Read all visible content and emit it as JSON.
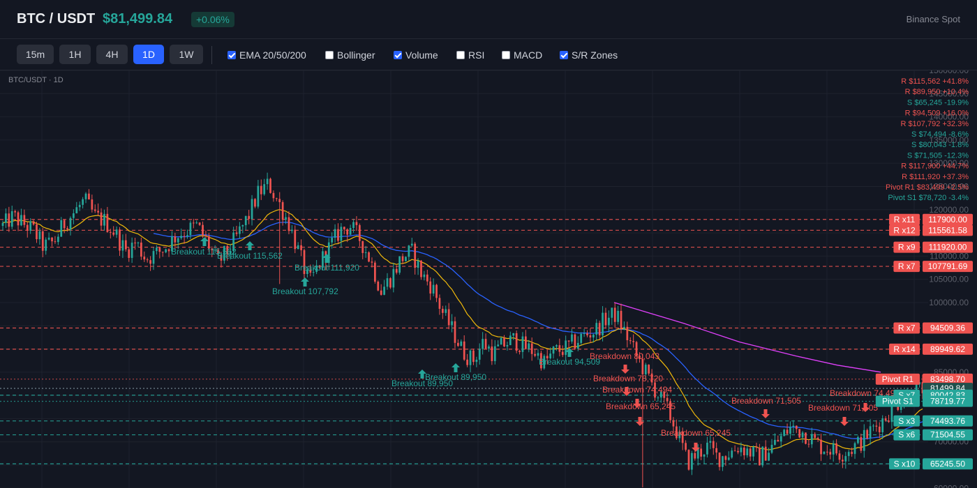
{
  "header": {
    "symbol": "BTC / USDT",
    "price": "$81,499.84",
    "change": "+0.06%",
    "exchange": "Binance Spot"
  },
  "toolbar": {
    "timeframes": [
      "15m",
      "1H",
      "4H",
      "1D",
      "1W"
    ],
    "active_timeframe": "1D",
    "indicators": [
      {
        "label": "EMA 20/50/200",
        "checked": true
      },
      {
        "label": "Bollinger",
        "checked": false
      },
      {
        "label": "Volume",
        "checked": true
      },
      {
        "label": "RSI",
        "checked": false
      },
      {
        "label": "MACD",
        "checked": false
      },
      {
        "label": "S/R Zones",
        "checked": true
      }
    ]
  },
  "chart": {
    "title": "BTC/USDT · 1D",
    "colors": {
      "up": "#26a69a",
      "down": "#ef5350",
      "ema20": "#f0b90b",
      "ema50": "#2962ff",
      "ema200": "#e040fb",
      "grid": "#1e222d",
      "axis_text": "#5d606b"
    }
  },
  "chart_data": {
    "type": "candlestick",
    "y_axis": {
      "range": [
        60000,
        150000
      ],
      "ticks": [
        "150000.00",
        "145000.00",
        "140000.00",
        "135000.00",
        "130000.00",
        "125000.00",
        "120000.00",
        "115000.00",
        "110000.00",
        "105000.00",
        "100000.00",
        "95000.00",
        "90000.00",
        "85000.00",
        "80000.00",
        "75000.00",
        "70000.00",
        "65000.00",
        "60000.00"
      ]
    },
    "close_path": [
      116500,
      118500,
      117000,
      115500,
      112000,
      113000,
      117000,
      119500,
      122000,
      118500,
      117500,
      115000,
      111000,
      113000,
      109500,
      110500,
      112000,
      114500,
      115500,
      116500,
      113000,
      108500,
      111000,
      114500,
      118500,
      123500,
      125500,
      121500,
      117000,
      110500,
      104000,
      108500,
      112000,
      115500,
      116500,
      113500,
      109000,
      102500,
      105500,
      109500,
      111000,
      106000,
      103500,
      98000,
      94000,
      89500,
      87500,
      91500,
      89000,
      91000,
      92000,
      90500,
      89500,
      87000,
      89500,
      90000,
      91500,
      93000,
      94000,
      96500,
      97500,
      93000,
      88500,
      84500,
      80500,
      77000,
      72000,
      65500,
      67500,
      69000,
      66500,
      67500,
      69000,
      68000,
      66500,
      68500,
      70500,
      73000,
      72500,
      71000,
      69000,
      68500,
      67500,
      68500,
      70000,
      72500,
      74500,
      77000,
      79500,
      80500,
      81500
    ],
    "ema200_path": [
      [
        880,
        100000
      ],
      [
        980,
        95500
      ],
      [
        1060,
        91500
      ],
      [
        1140,
        88500
      ],
      [
        1200,
        86500
      ],
      [
        1262,
        85000
      ]
    ],
    "sr_lines": [
      {
        "label": "R x11",
        "value": "117900.00",
        "kind": "R",
        "price": 117900
      },
      {
        "label": "R x12",
        "value": "115561.58",
        "kind": "R",
        "price": 115562
      },
      {
        "label": "R x9",
        "value": "111920.00",
        "kind": "R",
        "price": 111920
      },
      {
        "label": "R x7",
        "value": "107791.69",
        "kind": "R",
        "price": 107792
      },
      {
        "label": "R x7",
        "value": "94509.36",
        "kind": "R",
        "price": 94509
      },
      {
        "label": "R x14",
        "value": "89949.62",
        "kind": "R",
        "price": 89950
      },
      {
        "label": "Pivot R1",
        "value": "83498.70",
        "kind": "R",
        "price": 83499
      },
      {
        "label": "",
        "value": "81499.84",
        "kind": "P",
        "price": 81500
      },
      {
        "label": "S x7",
        "value": "80042.83",
        "kind": "S",
        "price": 80043
      },
      {
        "label": "Pivot S1",
        "value": "78719.77",
        "kind": "S",
        "price": 78720
      },
      {
        "label": "S x3",
        "value": "74493.76",
        "kind": "S",
        "price": 74494
      },
      {
        "label": "S x6",
        "value": "71504.55",
        "kind": "S",
        "price": 71505
      },
      {
        "label": "S x10",
        "value": "65245.50",
        "kind": "S",
        "price": 65245
      }
    ],
    "level_list": [
      {
        "text": "R $115,562 +41.8%",
        "kind": "R"
      },
      {
        "text": "R $89,950 +10.4%",
        "kind": "R"
      },
      {
        "text": "S $65,245 -19.9%",
        "kind": "S"
      },
      {
        "text": "R $94,509 +16.0%",
        "kind": "R"
      },
      {
        "text": "R $107,792 +32.3%",
        "kind": "R"
      },
      {
        "text": "S $74,494 -8.6%",
        "kind": "S"
      },
      {
        "text": "S $80,043 -1.8%",
        "kind": "S"
      },
      {
        "text": "S $71,505 -12.3%",
        "kind": "S"
      },
      {
        "text": "R $117,900 +44.7%",
        "kind": "R"
      },
      {
        "text": "R $111,920 +37.3%",
        "kind": "R"
      },
      {
        "text": "Pivot R1 $83,499 +2.5%",
        "kind": "R"
      },
      {
        "text": "Pivot S1 $78,720 -3.4%",
        "kind": "S"
      }
    ],
    "signals": [
      {
        "text": "Breakout 115,562",
        "dir": "up",
        "ax": 293,
        "ay": 246,
        "lx": 245,
        "ly": 264
      },
      {
        "text": "Breakout 115,562",
        "dir": "up",
        "ax": 358,
        "ay": 252,
        "lx": 311,
        "ly": 270
      },
      {
        "text": "Breakout 111,920",
        "dir": "up",
        "ax": 468,
        "ay": 270,
        "lx": 422,
        "ly": 287
      },
      {
        "text": "Breakout 107,792",
        "dir": "up",
        "ax": 437,
        "ay": 304,
        "lx": 390,
        "ly": 321
      },
      {
        "text": "Breakout 89,950",
        "dir": "up",
        "ax": 605,
        "ay": 436,
        "lx": 561,
        "ly": 453
      },
      {
        "text": "Breakout 89,950",
        "dir": "up",
        "ax": 653,
        "ay": 427,
        "lx": 609,
        "ly": 444
      },
      {
        "text": "Breakout 94,509",
        "dir": "up",
        "ax": 816,
        "ay": 405,
        "lx": 772,
        "ly": 422
      },
      {
        "text": "Breakdown 80,043",
        "dir": "down",
        "ax": 896,
        "ay": 428,
        "lx": 845,
        "ly": 414
      },
      {
        "text": "Breakdown 78,720",
        "dir": "down",
        "ax": 898,
        "ay": 460,
        "lx": 850,
        "ly": 446
      },
      {
        "text": "Breakdown 74,494",
        "dir": "down",
        "ax": 913,
        "ay": 477,
        "lx": 863,
        "ly": 462
      },
      {
        "text": "Breakdown 65,245",
        "dir": "down",
        "ax": 917,
        "ay": 503,
        "lx": 868,
        "ly": 486
      },
      {
        "text": "Breakdown 65,245",
        "dir": "down",
        "ax": 997,
        "ay": 540,
        "lx": 947,
        "ly": 524
      },
      {
        "text": "Breakdown 71,505",
        "dir": "down",
        "ax": 1097,
        "ay": 492,
        "lx": 1048,
        "ly": 478
      },
      {
        "text": "Breakdown 71,505",
        "dir": "down",
        "ax": 1210,
        "ay": 503,
        "lx": 1158,
        "ly": 488
      },
      {
        "text": "Breakdown 74,494",
        "dir": "down",
        "ax": 1240,
        "ay": 483,
        "lx": 1189,
        "ly": 467
      }
    ]
  }
}
